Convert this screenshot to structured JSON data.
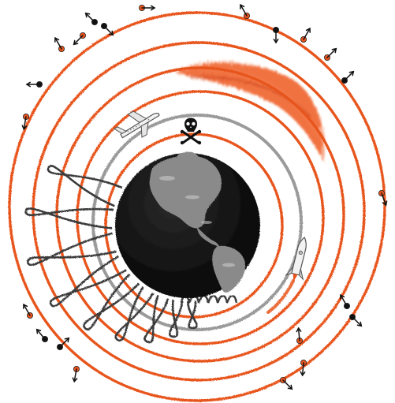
{
  "colors": {
    "orbit": "#e8541e",
    "orbit_gray": "#9a9a9a",
    "earth_ocean": "#111111",
    "earth_land": "#8a8a8a",
    "loop": "#3a3a3a",
    "satellite_orange": "#e8541e",
    "satellite_black": "#111111",
    "smudge": "#ef5a20",
    "background": "#ffffff"
  },
  "icons": {
    "globe": "earth-globe-icon",
    "airplane": "airplane-icon",
    "skull": "skull-crossbones-icon",
    "rocket": "rocket-icon",
    "satellite": "satellite-dot-icon",
    "arrow": "direction-arrow-icon"
  },
  "scene": {
    "orbit_count": 6,
    "gray_orbit_count": 1,
    "satellite_count": 22,
    "loop_count": 9
  }
}
